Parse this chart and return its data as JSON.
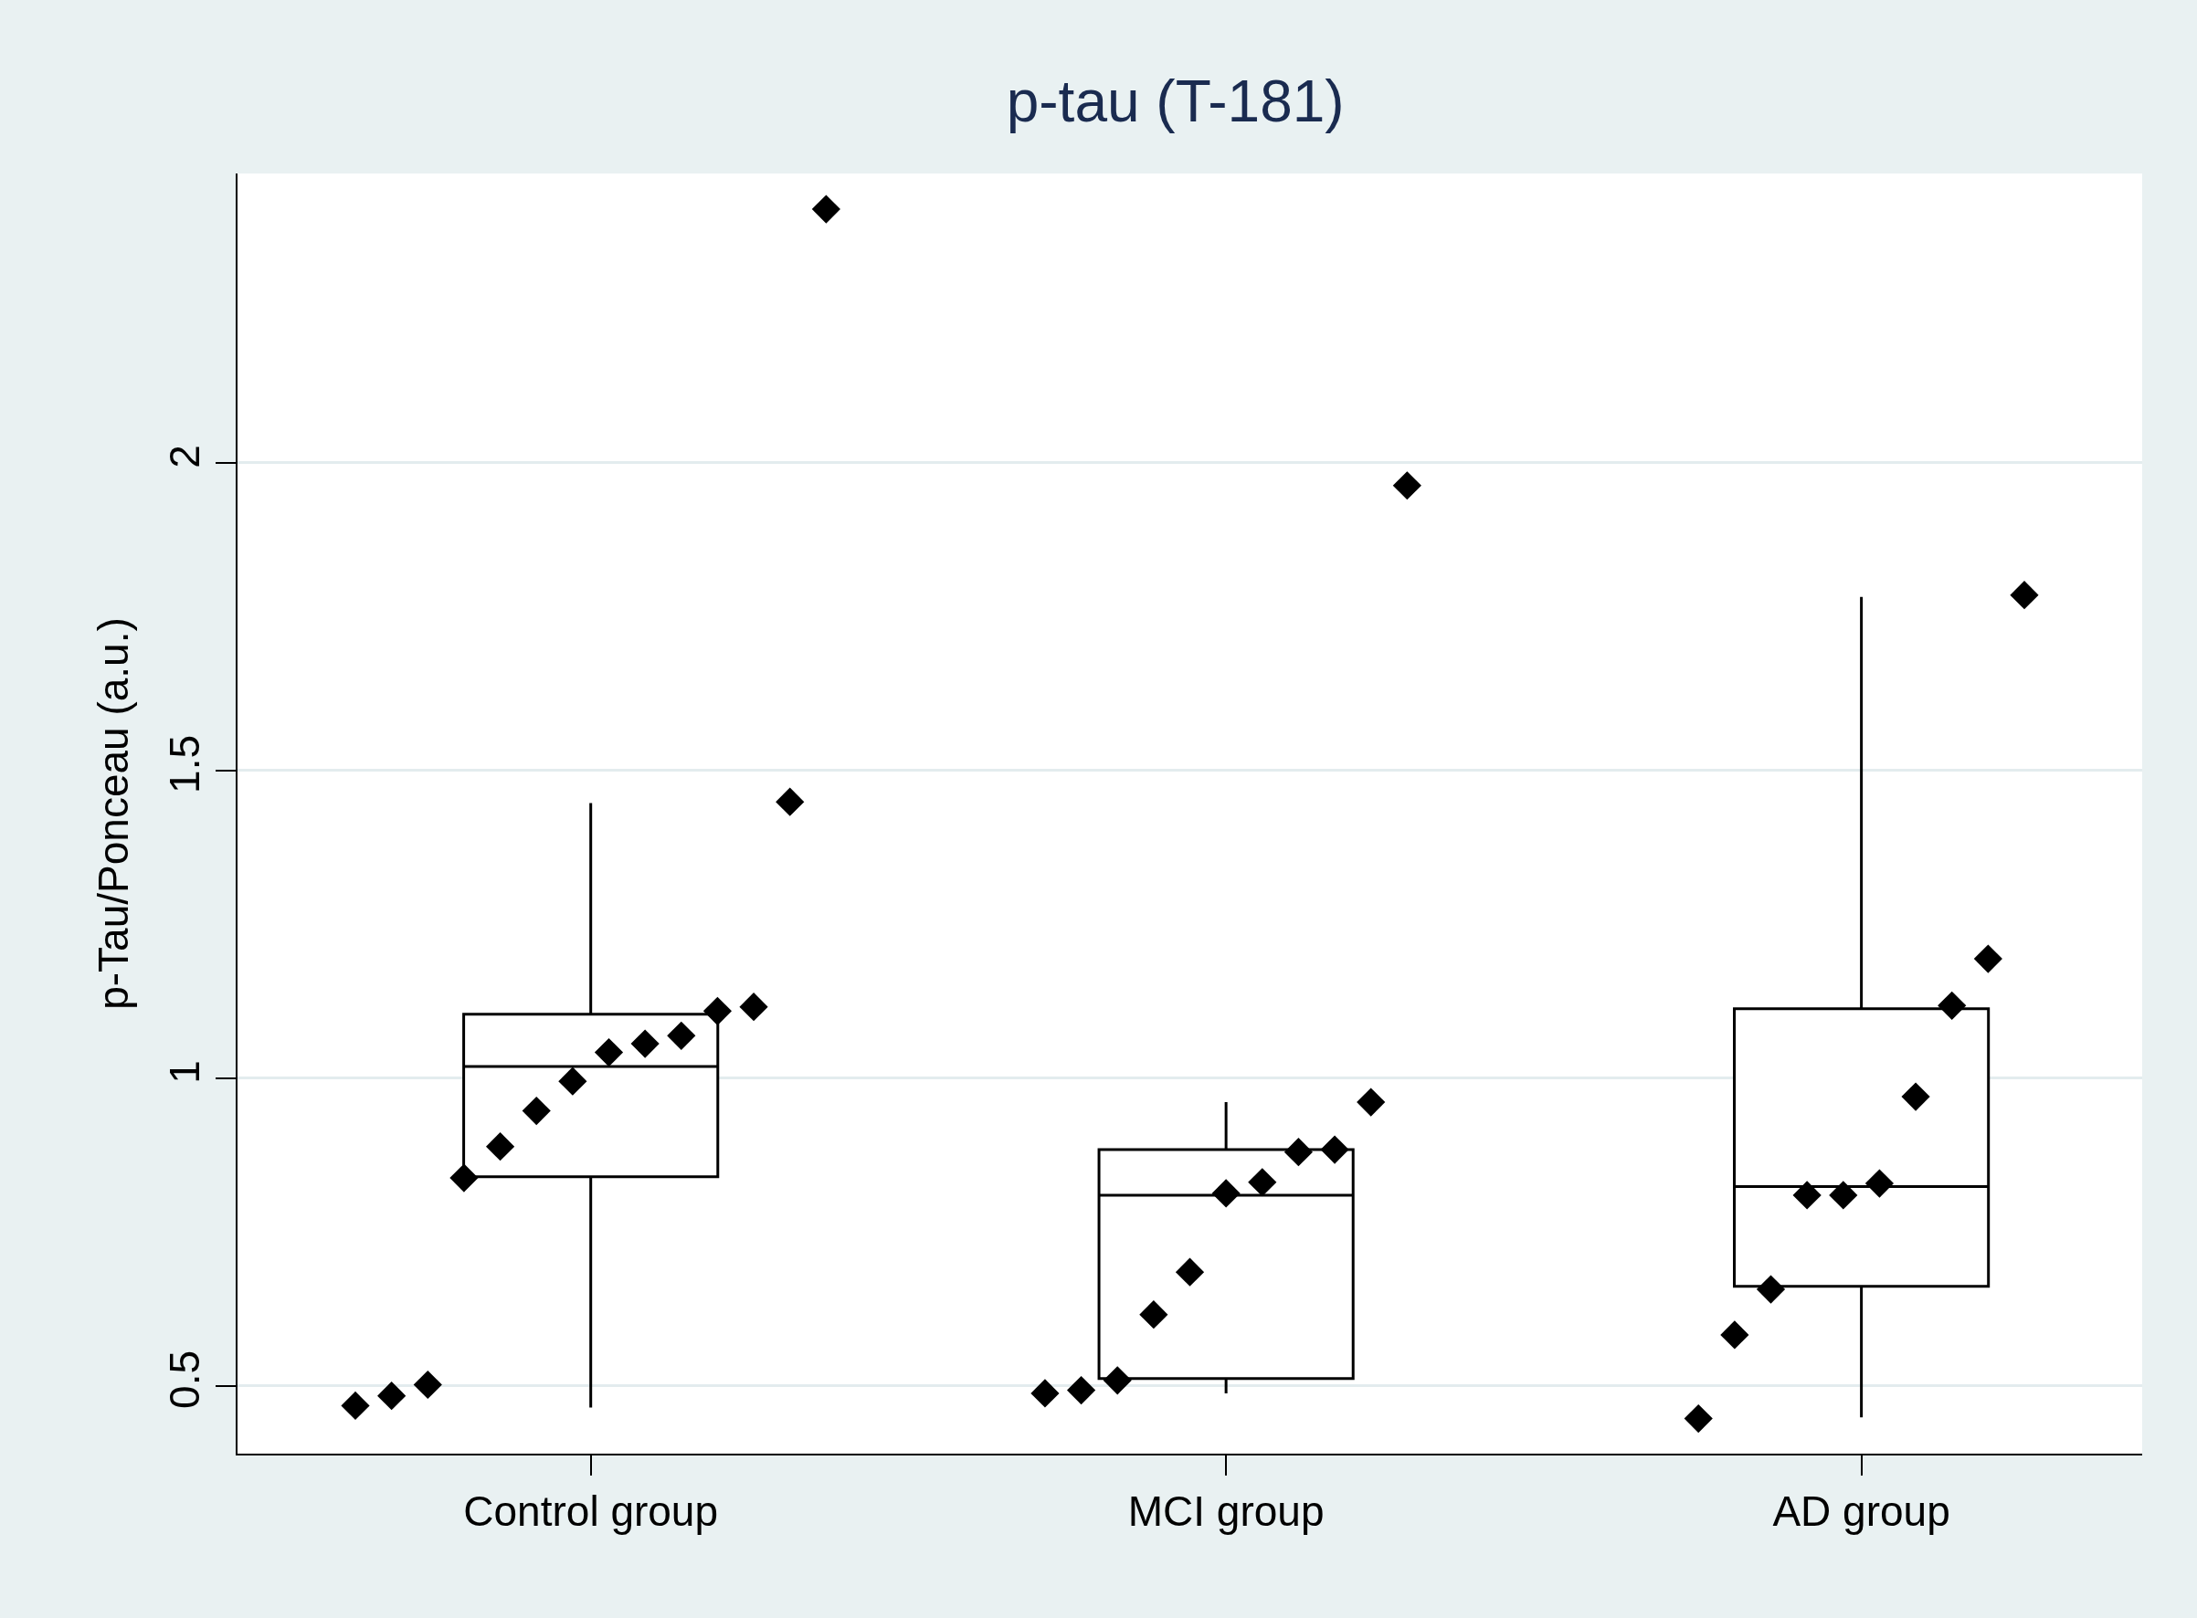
{
  "chart_data": {
    "type": "box",
    "title": "p-tau (T-181)",
    "ylabel": "p-Tau/Ponceau (a.u.)",
    "categories": [
      "Control group",
      "MCI group",
      "AD group"
    ],
    "boxes": [
      {
        "low": 0.465,
        "q1": 0.84,
        "median": 1.019,
        "q3": 1.104,
        "high": 1.447
      },
      {
        "low": 0.488,
        "q1": 0.512,
        "median": 0.81,
        "q3": 0.884,
        "high": 0.961
      },
      {
        "low": 0.449,
        "q1": 0.662,
        "median": 0.824,
        "q3": 1.113,
        "high": 1.782
      }
    ],
    "series": [
      {
        "type": "scatter",
        "color": "#000000",
        "marker": "diamond",
        "x": [
          "Control group",
          "Control group",
          "Control group",
          "Control group",
          "Control group",
          "Control group",
          "Control group",
          "Control group",
          "Control group",
          "Control group",
          "Control group",
          "Control group",
          "Control group",
          "Control group",
          "MCI group",
          "MCI group",
          "MCI group",
          "MCI group",
          "MCI group",
          "MCI group",
          "MCI group",
          "MCI group",
          "MCI group",
          "MCI group",
          "MCI group",
          "AD group",
          "AD group",
          "AD group",
          "AD group",
          "AD group",
          "AD group",
          "AD group",
          "AD group",
          "AD group",
          "AD group"
        ],
        "values": [
          0.468,
          0.484,
          0.502,
          0.838,
          0.889,
          0.947,
          0.995,
          1.042,
          1.056,
          1.069,
          1.109,
          1.116,
          1.449,
          2.412,
          0.488,
          0.493,
          0.509,
          0.616,
          0.685,
          0.813,
          0.831,
          0.88,
          0.884,
          0.961,
          1.963,
          0.447,
          0.583,
          0.657,
          0.81,
          0.81,
          0.829,
          0.97,
          1.118,
          1.194,
          1.785
        ]
      }
    ],
    "ylim": [
      0.39,
      2.47
    ],
    "yticks": [
      0.5,
      1,
      1.5,
      2
    ],
    "grid": "y"
  }
}
